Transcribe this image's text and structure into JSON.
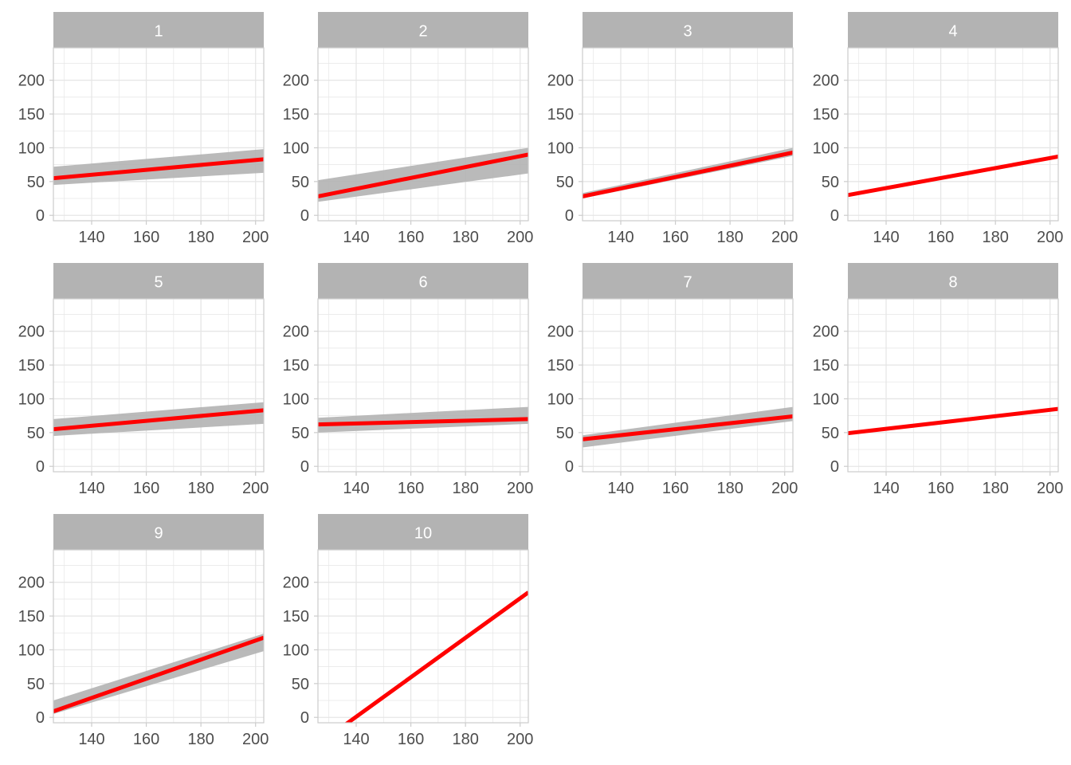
{
  "colors": {
    "fit_line": "#ff0000",
    "band": "#b3b3b3",
    "strip": "#b3b3b3",
    "strip_text": "#ffffff",
    "grid": "#e6e6e6",
    "panel_border": "#cccccc",
    "tick_label": "#4d4d4d"
  },
  "chart_data": {
    "type": "line",
    "layout": "facet_wrap",
    "ncol": 4,
    "xlim": [
      126,
      203
    ],
    "ylim": [
      -8,
      248
    ],
    "x_ticks": [
      140,
      160,
      180,
      200
    ],
    "y_ticks": [
      0,
      50,
      100,
      150,
      200
    ],
    "grid": true,
    "x_range": [
      126,
      203
    ],
    "panels": [
      {
        "label": "1",
        "fit": [
          55,
          83
        ],
        "band_start": [
          45,
          72
        ],
        "band_end": [
          63,
          98
        ]
      },
      {
        "label": "2",
        "fit": [
          28,
          90
        ],
        "band_start": [
          20,
          52
        ],
        "band_end": [
          62,
          100
        ]
      },
      {
        "label": "3",
        "fit": [
          28,
          93
        ],
        "band_start": [
          25,
          33
        ],
        "band_end": [
          88,
          100
        ]
      },
      {
        "label": "4",
        "fit": [
          30,
          87
        ],
        "band_start": [
          29,
          31
        ],
        "band_end": [
          86,
          89
        ]
      },
      {
        "label": "5",
        "fit": [
          55,
          83
        ],
        "band_start": [
          45,
          70
        ],
        "band_end": [
          63,
          95
        ]
      },
      {
        "label": "6",
        "fit": [
          62,
          70
        ],
        "band_start": [
          50,
          72
        ],
        "band_end": [
          63,
          88
        ]
      },
      {
        "label": "7",
        "fit": [
          40,
          74
        ],
        "band_start": [
          28,
          46
        ],
        "band_end": [
          67,
          88
        ]
      },
      {
        "label": "8",
        "fit": [
          49,
          85
        ],
        "band_start": [
          48,
          50
        ],
        "band_end": [
          84,
          86
        ]
      },
      {
        "label": "9",
        "fit": [
          9,
          118
        ],
        "band_start": [
          5,
          25
        ],
        "band_end": [
          98,
          124
        ]
      },
      {
        "label": "10",
        "fit": [
          -40,
          185
        ],
        "band_start": [
          -42,
          -38
        ],
        "band_end": [
          182,
          188
        ]
      }
    ]
  }
}
